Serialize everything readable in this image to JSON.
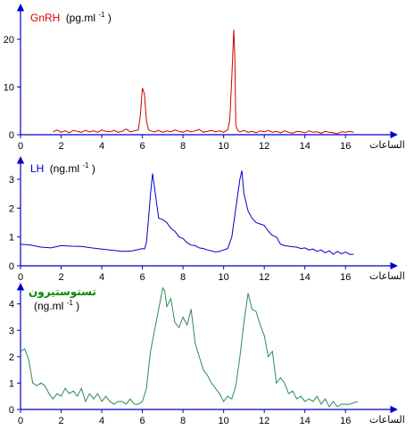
{
  "x_axis_label": "الساعات",
  "chart_data": [
    {
      "type": "line",
      "title_name": "GnRH",
      "title_unit": "(pg.ml",
      "title_sup": "-1",
      "title_close": ")",
      "name_color": "#d40000",
      "line_color": "#cc0000",
      "xlim": [
        0,
        17
      ],
      "ylim": [
        0,
        23
      ],
      "xticks": [
        0,
        2,
        4,
        6,
        8,
        10,
        12,
        14,
        16
      ],
      "yticks": [
        0,
        10,
        20
      ],
      "x": [
        1.6,
        1.8,
        2.0,
        2.2,
        2.4,
        2.6,
        2.8,
        3.0,
        3.2,
        3.4,
        3.6,
        3.8,
        4.0,
        4.2,
        4.4,
        4.6,
        4.8,
        5.0,
        5.2,
        5.4,
        5.6,
        5.8,
        5.9,
        6.0,
        6.1,
        6.2,
        6.3,
        6.4,
        6.6,
        6.8,
        7.0,
        7.2,
        7.4,
        7.6,
        7.8,
        8.0,
        8.2,
        8.4,
        8.6,
        8.8,
        9.0,
        9.2,
        9.4,
        9.6,
        9.8,
        10.0,
        10.2,
        10.3,
        10.4,
        10.5,
        10.55,
        10.6,
        10.7,
        10.8,
        11.0,
        11.2,
        11.4,
        11.6,
        11.8,
        12.0,
        12.2,
        12.4,
        12.6,
        12.8,
        13.0,
        13.2,
        13.4,
        13.6,
        13.8,
        14.0,
        14.2,
        14.4,
        14.6,
        14.8,
        15.0,
        15.2,
        15.4,
        15.6,
        15.8,
        16.0,
        16.2,
        16.4
      ],
      "y": [
        0.6,
        1.0,
        0.5,
        0.8,
        0.4,
        0.9,
        0.7,
        0.5,
        0.9,
        0.6,
        0.8,
        0.5,
        1.0,
        0.7,
        0.6,
        0.9,
        0.5,
        0.7,
        1.2,
        0.6,
        0.8,
        1.0,
        4.0,
        9.8,
        8.5,
        3.0,
        1.0,
        0.8,
        0.6,
        0.9,
        0.5,
        0.8,
        0.6,
        1.0,
        0.7,
        0.5,
        0.9,
        0.6,
        0.8,
        1.1,
        0.5,
        0.7,
        0.9,
        0.6,
        0.8,
        0.5,
        1.0,
        3.0,
        12.0,
        22.0,
        16.0,
        2.0,
        0.8,
        0.6,
        0.9,
        0.5,
        0.7,
        0.4,
        0.8,
        0.6,
        0.9,
        0.5,
        0.7,
        0.4,
        0.8,
        0.5,
        0.3,
        0.7,
        0.6,
        0.4,
        0.8,
        0.5,
        0.6,
        0.3,
        0.7,
        0.5,
        0.4,
        0.2,
        0.6,
        0.5,
        0.7,
        0.5
      ]
    },
    {
      "type": "line",
      "title_name": "LH",
      "title_unit": "(ng.ml",
      "title_sup": "-1",
      "title_close": ")",
      "name_color": "#0000cc",
      "line_color": "#0000cc",
      "xlim": [
        0,
        17
      ],
      "ylim": [
        0,
        3.4
      ],
      "xticks": [
        0,
        2,
        4,
        6,
        8,
        10,
        12,
        14,
        16
      ],
      "yticks": [
        0,
        1,
        2,
        3
      ],
      "x": [
        0,
        0.5,
        1.0,
        1.5,
        2.0,
        2.5,
        3.0,
        3.5,
        4.0,
        4.5,
        5.0,
        5.5,
        6.0,
        6.1,
        6.2,
        6.3,
        6.4,
        6.5,
        6.6,
        6.8,
        7.0,
        7.2,
        7.4,
        7.6,
        7.8,
        8.0,
        8.2,
        8.4,
        8.6,
        8.8,
        9.0,
        9.2,
        9.4,
        9.6,
        9.8,
        10.0,
        10.2,
        10.4,
        10.6,
        10.8,
        10.9,
        11.0,
        11.2,
        11.4,
        11.6,
        11.8,
        12.0,
        12.2,
        12.4,
        12.6,
        12.8,
        13.0,
        13.2,
        13.4,
        13.6,
        13.8,
        14.0,
        14.2,
        14.4,
        14.6,
        14.8,
        15.0,
        15.2,
        15.4,
        15.6,
        15.8,
        16.0,
        16.2,
        16.4
      ],
      "y": [
        0.75,
        0.72,
        0.65,
        0.62,
        0.7,
        0.68,
        0.67,
        0.62,
        0.58,
        0.54,
        0.5,
        0.52,
        0.6,
        0.58,
        0.8,
        1.6,
        2.5,
        3.2,
        2.7,
        1.65,
        1.6,
        1.5,
        1.3,
        1.2,
        1.0,
        0.95,
        0.8,
        0.72,
        0.7,
        0.62,
        0.6,
        0.55,
        0.52,
        0.48,
        0.5,
        0.55,
        0.6,
        1.0,
        2.0,
        3.0,
        3.3,
        2.5,
        1.9,
        1.65,
        1.5,
        1.45,
        1.4,
        1.2,
        1.05,
        1.0,
        0.75,
        0.7,
        0.68,
        0.66,
        0.65,
        0.6,
        0.62,
        0.55,
        0.58,
        0.5,
        0.55,
        0.45,
        0.52,
        0.4,
        0.5,
        0.42,
        0.48,
        0.4,
        0.4
      ]
    },
    {
      "type": "line",
      "title_name": "تستوستيرون",
      "title_unit": "(ng.ml",
      "title_sup": "-1",
      "title_close": ")",
      "name_color": "#008800",
      "line_color": "#2e8b57",
      "xlim": [
        0,
        17
      ],
      "ylim": [
        0,
        4.8
      ],
      "xticks": [
        0,
        2,
        4,
        6,
        8,
        10,
        12,
        14,
        16
      ],
      "yticks": [
        0,
        1,
        2,
        3,
        4
      ],
      "x": [
        0,
        0.2,
        0.4,
        0.6,
        0.8,
        1.0,
        1.2,
        1.4,
        1.6,
        1.8,
        2.0,
        2.2,
        2.4,
        2.6,
        2.8,
        3.0,
        3.2,
        3.4,
        3.6,
        3.8,
        4.0,
        4.2,
        4.4,
        4.6,
        4.8,
        5.0,
        5.2,
        5.4,
        5.6,
        5.8,
        6.0,
        6.2,
        6.4,
        6.6,
        6.8,
        7.0,
        7.1,
        7.2,
        7.4,
        7.6,
        7.8,
        8.0,
        8.2,
        8.4,
        8.6,
        8.8,
        9.0,
        9.2,
        9.4,
        9.6,
        9.8,
        10.0,
        10.2,
        10.4,
        10.6,
        10.8,
        11.0,
        11.2,
        11.4,
        11.6,
        11.8,
        12.0,
        12.2,
        12.4,
        12.6,
        12.8,
        13.0,
        13.2,
        13.4,
        13.6,
        13.8,
        14.0,
        14.2,
        14.4,
        14.6,
        14.8,
        15.0,
        15.2,
        15.4,
        15.6,
        15.8,
        16.0,
        16.2,
        16.4,
        16.6
      ],
      "y": [
        2.2,
        2.3,
        1.9,
        1.0,
        0.9,
        1.0,
        0.9,
        0.6,
        0.4,
        0.6,
        0.5,
        0.8,
        0.6,
        0.7,
        0.5,
        0.8,
        0.3,
        0.6,
        0.4,
        0.6,
        0.3,
        0.5,
        0.3,
        0.2,
        0.3,
        0.3,
        0.2,
        0.4,
        0.2,
        0.2,
        0.3,
        0.8,
        2.2,
        3.0,
        3.8,
        4.6,
        4.5,
        3.9,
        4.2,
        3.3,
        3.1,
        3.5,
        3.2,
        3.8,
        2.5,
        2.0,
        1.5,
        1.3,
        1.0,
        0.8,
        0.6,
        0.3,
        0.5,
        0.4,
        0.9,
        2.0,
        3.3,
        4.4,
        3.8,
        3.7,
        3.2,
        2.8,
        2.0,
        2.2,
        1.0,
        1.2,
        1.0,
        0.6,
        0.7,
        0.4,
        0.5,
        0.3,
        0.4,
        0.3,
        0.5,
        0.2,
        0.4,
        0.1,
        0.3,
        0.1,
        0.2,
        0.2,
        0.2,
        0.25,
        0.3
      ]
    }
  ]
}
